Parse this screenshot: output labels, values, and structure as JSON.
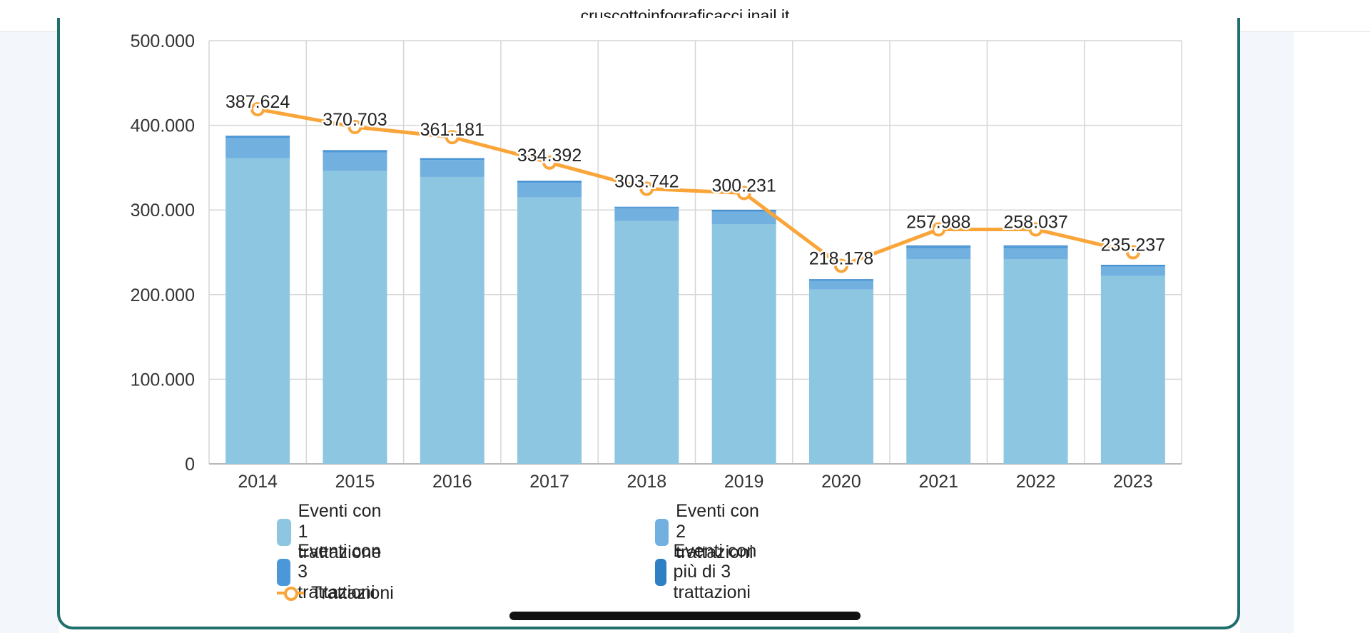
{
  "browser": {
    "url": "cruscottoinfograficacci.inail.it"
  },
  "chart_data": {
    "type": "bar",
    "stacked": true,
    "categories": [
      "2014",
      "2015",
      "2016",
      "2017",
      "2018",
      "2019",
      "2020",
      "2021",
      "2022",
      "2023"
    ],
    "ylim": [
      0,
      500000
    ],
    "yticks": [
      "0",
      "100.000",
      "200.000",
      "300.000",
      "400.000",
      "500.000"
    ],
    "grid": true,
    "series": [
      {
        "name": "Eventi con 1 trattazione",
        "color": "#8dc6e0",
        "values": [
          361000,
          346000,
          339000,
          315000,
          287000,
          283000,
          206000,
          242000,
          242000,
          222000
        ]
      },
      {
        "name": "Eventi con 2 trattazioni",
        "color": "#72b0e0",
        "values": [
          24000,
          22000,
          20000,
          17000,
          15000,
          15000,
          10000,
          13000,
          13000,
          11000
        ]
      },
      {
        "name": "Eventi con 3 trattazioni",
        "color": "#4a98d8",
        "values": [
          2000,
          2000,
          1500,
          1500,
          1500,
          1500,
          1500,
          2000,
          2000,
          1500
        ]
      },
      {
        "name": "Eventi con più di 3 trattazioni",
        "color": "#2f7fc4",
        "values": [
          624,
          703,
          681,
          892,
          242,
          731,
          678,
          988,
          1037,
          737
        ]
      }
    ],
    "line": {
      "name": "Trattazioni",
      "color": "#f9a53a",
      "values": [
        419000,
        398000,
        386000,
        356000,
        325000,
        320000,
        234000,
        277000,
        277000,
        250000
      ],
      "labels": [
        "387.624",
        "370.703",
        "361.181",
        "334.392",
        "303.742",
        "300.231",
        "218.178",
        "257.988",
        "258.037",
        "235.237"
      ]
    },
    "legend_position": "bottom"
  }
}
